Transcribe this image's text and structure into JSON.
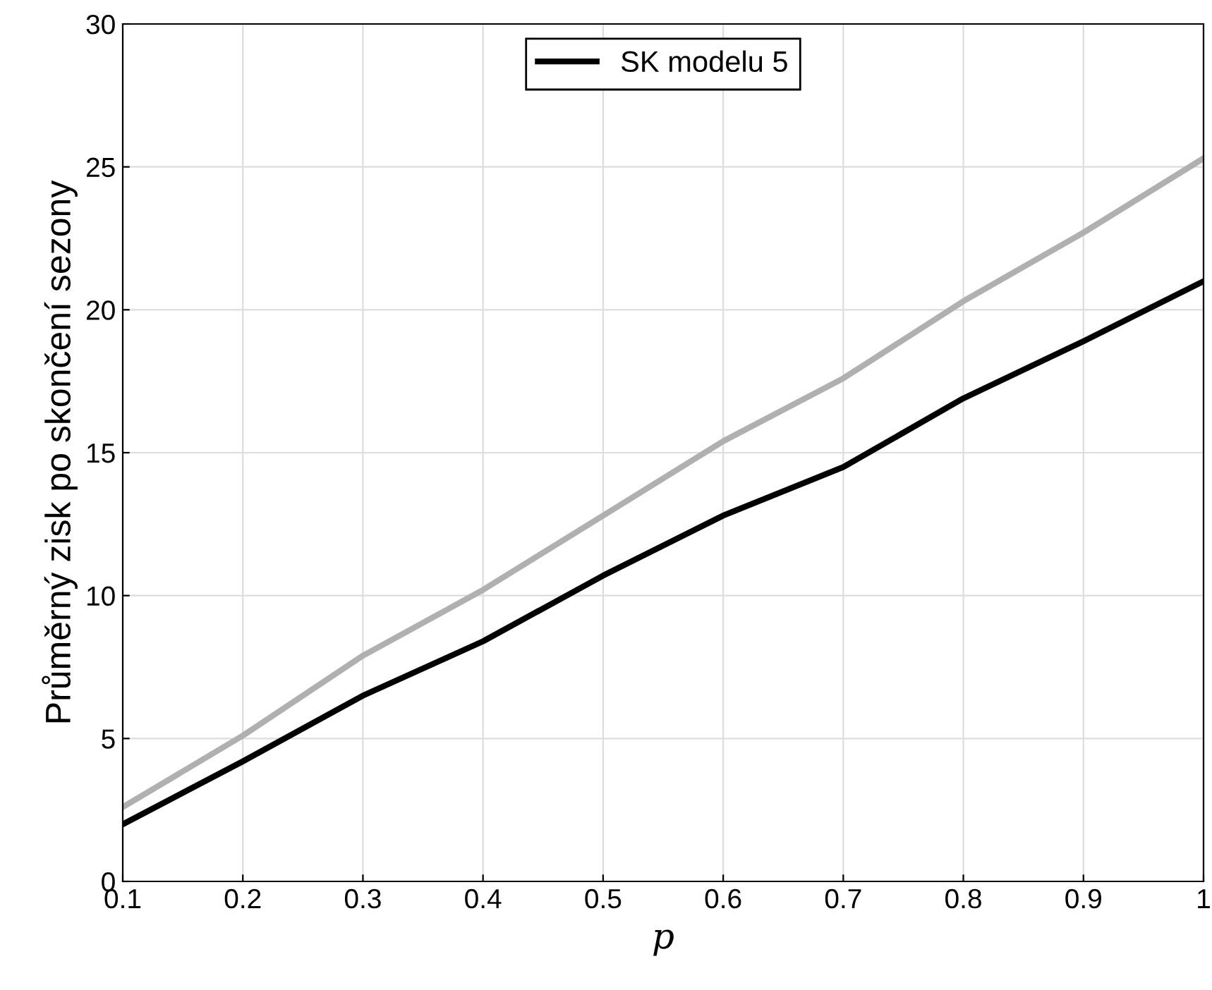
{
  "chart_data": {
    "type": "line",
    "xlabel": "p",
    "ylabel": "Průměrný zisk po skončení sezony",
    "x": [
      0.1,
      0.2,
      0.3,
      0.4,
      0.5,
      0.6,
      0.7,
      0.8,
      0.9,
      1
    ],
    "series": [
      {
        "name": "SK modelu 5",
        "color": "#000000",
        "values": [
          2.0,
          4.2,
          6.5,
          8.4,
          10.7,
          12.8,
          14.5,
          16.9,
          18.9,
          21.0
        ]
      },
      {
        "color": "#b0b0b0",
        "values": [
          2.6,
          5.1,
          7.9,
          10.2,
          12.8,
          15.4,
          17.6,
          20.3,
          22.7,
          25.3
        ]
      }
    ],
    "xlim": [
      0.1,
      1
    ],
    "ylim": [
      0,
      30
    ],
    "xticks": [
      0.1,
      0.2,
      0.3,
      0.4,
      0.5,
      0.6,
      0.7,
      0.8,
      0.9,
      1
    ],
    "yticks": [
      0,
      5,
      10,
      15,
      20,
      25,
      30
    ],
    "grid": true,
    "legend": "top",
    "line_style": "solid",
    "marker": "none"
  }
}
